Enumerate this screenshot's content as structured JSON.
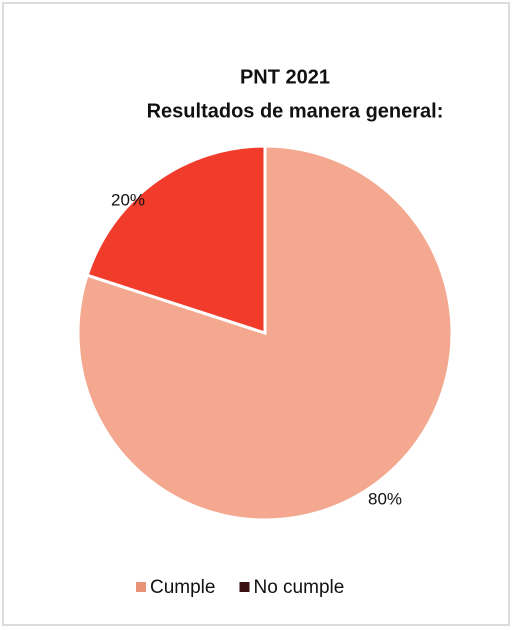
{
  "chart_data": {
    "type": "pie",
    "title": "PNT 2021",
    "subtitle": "Resultados de manera general:",
    "categories": [
      "Cumple",
      "No cumple"
    ],
    "values": [
      80,
      20
    ],
    "value_labels": [
      "80%",
      "20%"
    ],
    "colors": [
      "#f3a88f",
      "#f23c2b"
    ],
    "legend_colors": [
      "#e8927a",
      "#3a1010"
    ],
    "legend": "bottom"
  }
}
